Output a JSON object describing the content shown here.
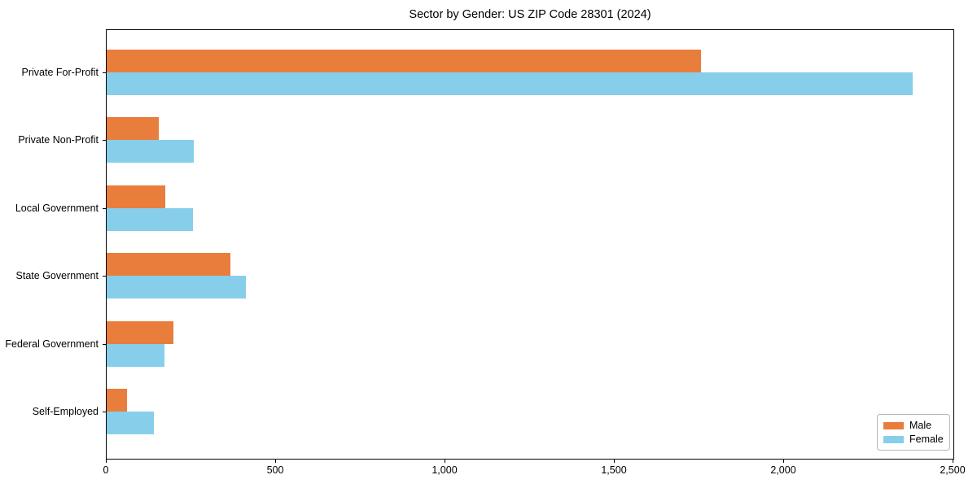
{
  "title": "Sector by Gender: US ZIP Code 28301 (2024)",
  "colors": {
    "male": "#e87d3c",
    "female": "#87ceeb",
    "axis": "#000000",
    "background": "#ffffff",
    "legend_border": "#b7b7b7"
  },
  "chart_data": {
    "type": "bar",
    "orientation": "horizontal",
    "title": "Sector by Gender: US ZIP Code 28301 (2024)",
    "xlabel": "",
    "ylabel": "",
    "categories": [
      "Private For-Profit",
      "Private Non-Profit",
      "Local Government",
      "State Government",
      "Federal Government",
      "Self-Employed"
    ],
    "series": [
      {
        "name": "Male",
        "color": "#e87d3c",
        "values": [
          1756,
          153,
          173,
          365,
          198,
          60
        ]
      },
      {
        "name": "Female",
        "color": "#87ceeb",
        "values": [
          2381,
          257,
          255,
          412,
          170,
          140
        ]
      }
    ],
    "xlim": [
      0,
      2500
    ],
    "xticks": [
      0,
      500,
      1000,
      1500,
      2000,
      2500
    ],
    "xtick_labels": [
      "0",
      "500",
      "1,000",
      "1,500",
      "2,000",
      "2,500"
    ],
    "grid": false,
    "legend_position": "lower right"
  },
  "legend": {
    "items": [
      {
        "label": "Male",
        "color": "#e87d3c"
      },
      {
        "label": "Female",
        "color": "#87ceeb"
      }
    ]
  }
}
